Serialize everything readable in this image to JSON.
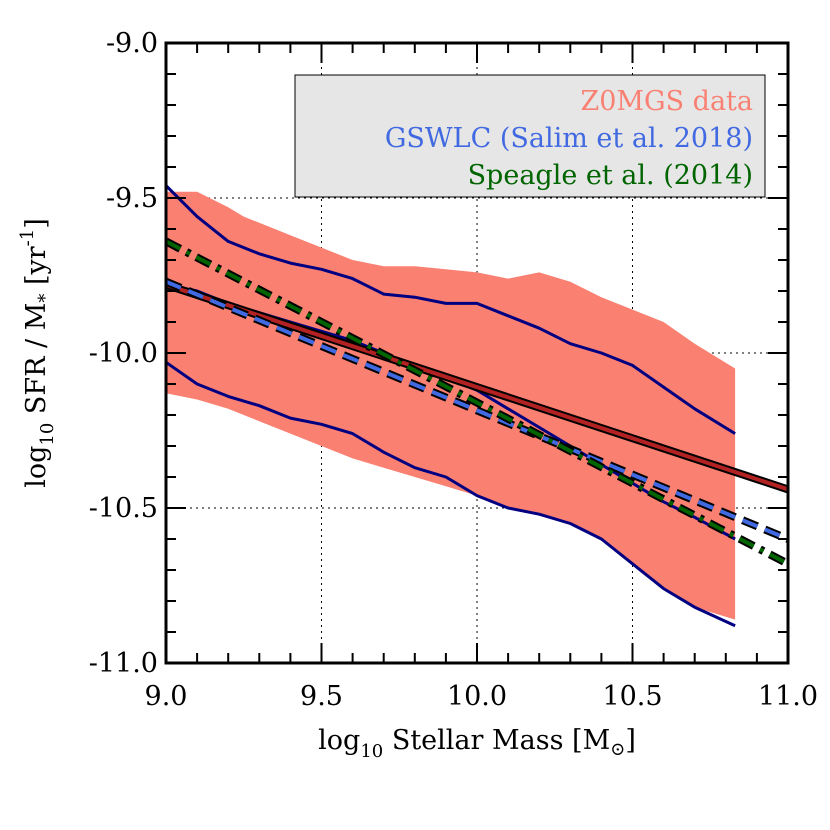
{
  "chart_data": {
    "type": "line",
    "title": "",
    "xlabel": {
      "prefix": "log",
      "sub": "10",
      "main": " Stellar Mass [M",
      "suffix": "]"
    },
    "ylabel": {
      "prefix": "log",
      "sub": "10",
      "main": " SFR / M",
      "star": "*",
      "unit": " [yr",
      "exp": "-1",
      "close": "]"
    },
    "xlim": [
      9.0,
      11.0
    ],
    "ylim": [
      -11.0,
      -9.0
    ],
    "xticks": [
      "9.0",
      "9.5",
      "10.0",
      "10.5",
      "11.0"
    ],
    "yticks": [
      "-9.0",
      "-9.5",
      "-10.0",
      "-10.5",
      "-11.0"
    ],
    "xtick_values": [
      9.0,
      9.5,
      10.0,
      10.5,
      11.0
    ],
    "ytick_values": [
      -9.0,
      -9.5,
      -10.0,
      -10.5,
      -11.0
    ],
    "grid": true,
    "legend": {
      "placement": "top-right",
      "background": "#e6e6e6",
      "entries": [
        {
          "label": "Z0MGS data",
          "color": "#f98173"
        },
        {
          "label": "GSWLC (Salim et al. 2018)",
          "color": "#4169e1"
        },
        {
          "label": "Speagle et al. (2014)",
          "color": "#006400"
        }
      ]
    },
    "series": [
      {
        "name": "Z0MGS data",
        "kind": "band",
        "color": "#fa8072",
        "x": [
          9.0,
          9.1,
          9.2,
          9.25,
          9.3,
          9.4,
          9.5,
          9.6,
          9.7,
          9.8,
          9.9,
          10.0,
          10.1,
          10.2,
          10.3,
          10.4,
          10.5,
          10.6,
          10.7,
          10.83
        ],
        "upper": [
          -9.48,
          -9.48,
          -9.53,
          -9.56,
          -9.58,
          -9.62,
          -9.66,
          -9.7,
          -9.72,
          -9.72,
          -9.73,
          -9.74,
          -9.76,
          -9.74,
          -9.77,
          -9.82,
          -9.86,
          -9.9,
          -9.97,
          -10.05
        ],
        "lower": [
          -10.13,
          -10.15,
          -10.18,
          -10.2,
          -10.22,
          -10.26,
          -10.3,
          -10.34,
          -10.37,
          -10.4,
          -10.43,
          -10.46,
          -10.5,
          -10.52,
          -10.55,
          -10.6,
          -10.68,
          -10.76,
          -10.82,
          -10.86
        ]
      },
      {
        "name": "Z0MGS upper percentile",
        "kind": "line",
        "color": "#000080",
        "x": [
          9.0,
          9.1,
          9.2,
          9.3,
          9.4,
          9.5,
          9.6,
          9.7,
          9.8,
          9.9,
          10.0,
          10.1,
          10.2,
          10.3,
          10.4,
          10.5,
          10.6,
          10.7,
          10.83
        ],
        "y": [
          -9.46,
          -9.56,
          -9.64,
          -9.68,
          -9.71,
          -9.73,
          -9.76,
          -9.81,
          -9.82,
          -9.84,
          -9.84,
          -9.88,
          -9.92,
          -9.97,
          -10.0,
          -10.04,
          -10.11,
          -10.18,
          -10.26
        ]
      },
      {
        "name": "Z0MGS median",
        "kind": "line",
        "color": "#000080",
        "x": [
          9.0,
          9.1,
          9.2,
          9.3,
          9.4,
          9.5,
          9.6,
          9.7,
          9.8,
          9.9,
          10.0,
          10.1,
          10.2,
          10.3,
          10.4,
          10.5,
          10.6,
          10.7,
          10.83
        ],
        "y": [
          -9.78,
          -9.8,
          -9.84,
          -9.87,
          -9.9,
          -9.93,
          -9.96,
          -10.0,
          -10.05,
          -10.08,
          -10.12,
          -10.18,
          -10.24,
          -10.3,
          -10.36,
          -10.42,
          -10.48,
          -10.53,
          -10.6
        ]
      },
      {
        "name": "Z0MGS lower percentile",
        "kind": "line",
        "color": "#000080",
        "x": [
          9.0,
          9.1,
          9.2,
          9.3,
          9.4,
          9.5,
          9.6,
          9.7,
          9.8,
          9.9,
          10.0,
          10.1,
          10.2,
          10.3,
          10.4,
          10.5,
          10.6,
          10.7,
          10.83
        ],
        "y": [
          -10.03,
          -10.1,
          -10.14,
          -10.17,
          -10.21,
          -10.23,
          -10.26,
          -10.32,
          -10.37,
          -10.4,
          -10.46,
          -10.5,
          -10.52,
          -10.55,
          -10.6,
          -10.68,
          -10.76,
          -10.82,
          -10.88
        ]
      },
      {
        "name": "Fit",
        "kind": "line",
        "color": "#b22222",
        "outline": "#000000",
        "x": [
          9.0,
          11.0
        ],
        "y": [
          -9.78,
          -10.44
        ]
      },
      {
        "name": "GSWLC (Salim et al. 2018)",
        "kind": "dashed",
        "color": "#4169e1",
        "outline": "#000000",
        "x": [
          9.0,
          11.0
        ],
        "y": [
          -9.77,
          -10.6
        ]
      },
      {
        "name": "Speagle et al. (2014)",
        "kind": "dashdot",
        "color": "#006400",
        "outline": "#000000",
        "x": [
          9.0,
          11.0
        ],
        "y": [
          -9.64,
          -10.68
        ]
      }
    ]
  }
}
